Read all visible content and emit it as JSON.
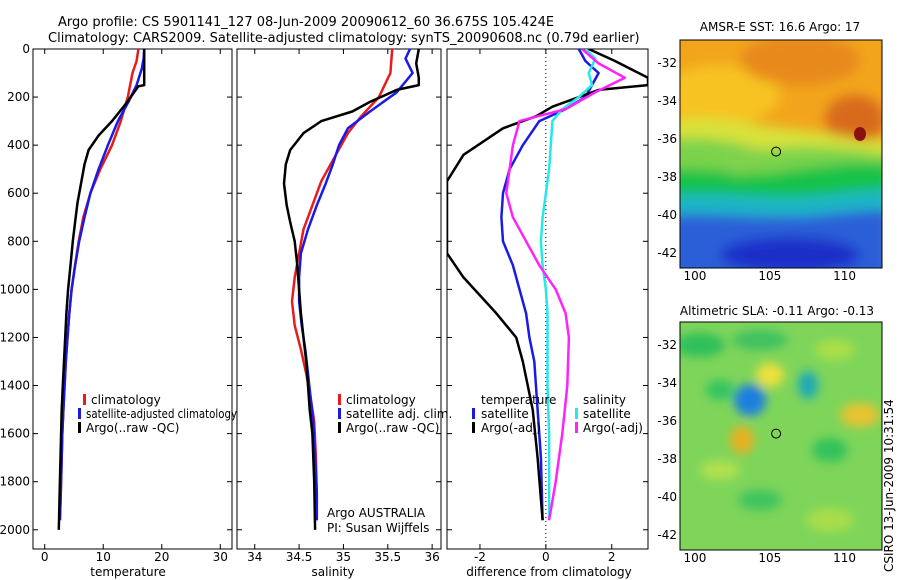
{
  "header": {
    "title_line1": "Argo profile: CS 5901141_127 08-Jun-2009 20090612_60 36.675S 105.424E",
    "title_line2": "Climatology: CARS2009. Satellite-adjusted climatology: synTS_20090608.nc (0.79d earlier)"
  },
  "colors": {
    "red": "#e81c1c",
    "blue": "#1a1ae6",
    "black": "#000000",
    "cyan": "#27e8e8",
    "magenta": "#ff22ff"
  },
  "chart_data": [
    {
      "id": "temperature",
      "type": "line",
      "xlabel": "temperature",
      "ylabel": "",
      "xlim": [
        -2,
        32
      ],
      "ylim": [
        2080,
        0
      ],
      "xticks": [
        0,
        10,
        20,
        30
      ],
      "yticks": [
        0,
        200,
        400,
        600,
        800,
        1000,
        1200,
        1400,
        1600,
        1800,
        2000
      ],
      "legend": {
        "position": "bottom-center",
        "entries": [
          "climatology",
          "satellite-adjusted climatology",
          "Argo(..raw -QC)"
        ]
      },
      "series": [
        {
          "name": "climatology",
          "color": "red",
          "points": [
            [
              16,
              0
            ],
            [
              15.7,
              50
            ],
            [
              15,
              100
            ],
            [
              14.2,
              200
            ],
            [
              13,
              300
            ],
            [
              11.5,
              400
            ],
            [
              9.5,
              500
            ],
            [
              7.8,
              600
            ],
            [
              6.6,
              700
            ],
            [
              5.8,
              800
            ],
            [
              5.2,
              900
            ],
            [
              4.6,
              1000
            ],
            [
              4.2,
              1100
            ],
            [
              3.9,
              1200
            ],
            [
              3.6,
              1300
            ],
            [
              3.4,
              1400
            ],
            [
              3.2,
              1500
            ],
            [
              3,
              1600
            ],
            [
              2.8,
              1800
            ],
            [
              2.6,
              1960
            ]
          ]
        },
        {
          "name": "satellite-adjusted climatology",
          "color": "blue",
          "points": [
            [
              17,
              0
            ],
            [
              16.9,
              40
            ],
            [
              16.6,
              80
            ],
            [
              15.7,
              150
            ],
            [
              14.3,
              220
            ],
            [
              12.5,
              300
            ],
            [
              10.8,
              400
            ],
            [
              9.2,
              500
            ],
            [
              7.8,
              600
            ],
            [
              6.8,
              700
            ],
            [
              5.9,
              800
            ],
            [
              5.2,
              900
            ],
            [
              4.6,
              1000
            ],
            [
              4.2,
              1100
            ],
            [
              3.9,
              1200
            ],
            [
              3.6,
              1300
            ],
            [
              3.4,
              1400
            ],
            [
              3.2,
              1500
            ],
            [
              3,
              1600
            ],
            [
              2.8,
              1800
            ],
            [
              2.6,
              1960
            ]
          ]
        },
        {
          "name": "Argo(..raw -QC)",
          "color": "black",
          "points": [
            [
              17,
              0
            ],
            [
              17,
              60
            ],
            [
              17,
              120
            ],
            [
              17,
              150
            ],
            [
              16,
              155
            ],
            [
              13.8,
              230
            ],
            [
              11.5,
              300
            ],
            [
              9.2,
              360
            ],
            [
              7.5,
              420
            ],
            [
              6.8,
              480
            ],
            [
              6.2,
              560
            ],
            [
              5.6,
              640
            ],
            [
              5.2,
              720
            ],
            [
              4.8,
              800
            ],
            [
              4.4,
              900
            ],
            [
              4,
              1000
            ],
            [
              3.7,
              1100
            ],
            [
              3.5,
              1200
            ],
            [
              3.3,
              1300
            ],
            [
              3.1,
              1400
            ],
            [
              2.9,
              1500
            ],
            [
              2.8,
              1600
            ],
            [
              2.6,
              1800
            ],
            [
              2.4,
              2000
            ]
          ]
        }
      ]
    },
    {
      "id": "salinity",
      "type": "line",
      "xlabel": "salinity",
      "ylabel": "",
      "xlim": [
        33.8,
        36.1
      ],
      "ylim": [
        2080,
        0
      ],
      "xticks": [
        34,
        34.5,
        35,
        35.5,
        36
      ],
      "legend": {
        "position": "bottom-center",
        "entries": [
          "climatology",
          "satellite adj. clim.",
          "Argo(..raw -QC)"
        ]
      },
      "annotation": [
        "Argo AUSTRALIA",
        "PI: Susan Wijffels"
      ],
      "series": [
        {
          "name": "climatology",
          "color": "red",
          "points": [
            [
              35.55,
              0
            ],
            [
              35.53,
              100
            ],
            [
              35.4,
              200
            ],
            [
              35.2,
              280
            ],
            [
              35.05,
              350
            ],
            [
              34.9,
              450
            ],
            [
              34.75,
              550
            ],
            [
              34.65,
              650
            ],
            [
              34.55,
              750
            ],
            [
              34.5,
              850
            ],
            [
              34.45,
              950
            ],
            [
              34.42,
              1050
            ],
            [
              34.45,
              1150
            ],
            [
              34.52,
              1250
            ],
            [
              34.58,
              1350
            ],
            [
              34.63,
              1450
            ],
            [
              34.67,
              1550
            ],
            [
              34.69,
              1700
            ],
            [
              34.7,
              1850
            ],
            [
              34.7,
              1960
            ]
          ]
        },
        {
          "name": "satellite adj. clim.",
          "color": "blue",
          "points": [
            [
              35.75,
              0
            ],
            [
              35.7,
              40
            ],
            [
              35.78,
              100
            ],
            [
              35.6,
              180
            ],
            [
              35.3,
              260
            ],
            [
              35.05,
              330
            ],
            [
              34.95,
              400
            ],
            [
              34.88,
              480
            ],
            [
              34.8,
              560
            ],
            [
              34.7,
              650
            ],
            [
              34.6,
              750
            ],
            [
              34.52,
              850
            ],
            [
              34.5,
              950
            ],
            [
              34.5,
              1050
            ],
            [
              34.53,
              1150
            ],
            [
              34.57,
              1250
            ],
            [
              34.6,
              1350
            ],
            [
              34.63,
              1450
            ],
            [
              34.66,
              1550
            ],
            [
              34.68,
              1700
            ],
            [
              34.7,
              1850
            ],
            [
              34.7,
              1960
            ]
          ]
        },
        {
          "name": "Argo(..raw -QC)",
          "color": "black",
          "points": [
            [
              35.85,
              0
            ],
            [
              35.82,
              60
            ],
            [
              35.85,
              120
            ],
            [
              35.85,
              150
            ],
            [
              35.6,
              170
            ],
            [
              35.3,
              220
            ],
            [
              35.1,
              260
            ],
            [
              34.75,
              300
            ],
            [
              34.55,
              350
            ],
            [
              34.4,
              420
            ],
            [
              34.35,
              480
            ],
            [
              34.33,
              560
            ],
            [
              34.36,
              650
            ],
            [
              34.4,
              720
            ],
            [
              34.45,
              800
            ],
            [
              34.48,
              900
            ],
            [
              34.5,
              1000
            ],
            [
              34.52,
              1100
            ],
            [
              34.55,
              1200
            ],
            [
              34.58,
              1300
            ],
            [
              34.6,
              1400
            ],
            [
              34.62,
              1500
            ],
            [
              34.65,
              1600
            ],
            [
              34.67,
              1800
            ],
            [
              34.68,
              2000
            ]
          ]
        }
      ]
    },
    {
      "id": "difference",
      "type": "line",
      "xlabel": "difference from climatology",
      "ylabel": "",
      "xlim": [
        -3,
        3.1
      ],
      "ylim": [
        2080,
        0
      ],
      "xticks": [
        -2,
        0,
        2
      ],
      "zero_line": true,
      "legend": {
        "position": "bottom-center",
        "groups": [
          [
            "temperature",
            "satellite",
            "Argo(-adj)"
          ],
          [
            "salinity",
            "satellite",
            "Argo(-adj)"
          ]
        ]
      },
      "series": [
        {
          "name": "temperature satellite",
          "color": "blue",
          "points": [
            [
              1,
              0
            ],
            [
              1.2,
              50
            ],
            [
              1.6,
              100
            ],
            [
              1.4,
              150
            ],
            [
              1.2,
              200
            ],
            [
              0.6,
              250
            ],
            [
              -0.2,
              300
            ],
            [
              -0.7,
              400
            ],
            [
              -1.1,
              500
            ],
            [
              -1.3,
              600
            ],
            [
              -1.35,
              700
            ],
            [
              -1.3,
              800
            ],
            [
              -1.0,
              900
            ],
            [
              -0.8,
              1000
            ],
            [
              -0.6,
              1100
            ],
            [
              -0.5,
              1200
            ],
            [
              -0.35,
              1300
            ],
            [
              -0.25,
              1500
            ],
            [
              -0.15,
              1700
            ],
            [
              -0.1,
              1960
            ]
          ]
        },
        {
          "name": "temperature Argo(-adj)",
          "color": "black",
          "points": [
            [
              1.3,
              0
            ],
            [
              2.1,
              50
            ],
            [
              3.1,
              120
            ],
            [
              3.1,
              150
            ],
            [
              1.6,
              170
            ],
            [
              0.2,
              240
            ],
            [
              -0.3,
              280
            ],
            [
              -1.3,
              330
            ],
            [
              -2.5,
              440
            ],
            [
              -3,
              550
            ],
            [
              -3,
              800
            ],
            [
              -3,
              850
            ],
            [
              -2.5,
              950
            ],
            [
              -1.5,
              1100
            ],
            [
              -0.9,
              1200
            ],
            [
              -0.7,
              1300
            ],
            [
              -0.4,
              1500
            ],
            [
              -0.25,
              1700
            ],
            [
              -0.1,
              1960
            ]
          ]
        },
        {
          "name": "salinity satellite",
          "color": "cyan",
          "points": [
            [
              1.2,
              0
            ],
            [
              1.5,
              40
            ],
            [
              1.3,
              100
            ],
            [
              1.4,
              150
            ],
            [
              1.0,
              200
            ],
            [
              0.5,
              250
            ],
            [
              0.2,
              300
            ],
            [
              0.15,
              400
            ],
            [
              0.1,
              500
            ],
            [
              0,
              600
            ],
            [
              -0.1,
              700
            ],
            [
              -0.15,
              800
            ],
            [
              -0.1,
              900
            ],
            [
              0,
              1000
            ],
            [
              0.05,
              1100
            ],
            [
              0.05,
              1200
            ],
            [
              0.05,
              1400
            ],
            [
              0.1,
              1600
            ],
            [
              0.1,
              1800
            ],
            [
              0.1,
              1960
            ]
          ]
        },
        {
          "name": "salinity Argo(-adj)",
          "color": "magenta",
          "points": [
            [
              1.1,
              0
            ],
            [
              1.6,
              60
            ],
            [
              2.4,
              120
            ],
            [
              1.5,
              180
            ],
            [
              0.6,
              250
            ],
            [
              -0.8,
              300
            ],
            [
              -1.0,
              400
            ],
            [
              -1.1,
              500
            ],
            [
              -1.2,
              600
            ],
            [
              -1.0,
              700
            ],
            [
              -0.6,
              800
            ],
            [
              -0.2,
              900
            ],
            [
              0.3,
              1000
            ],
            [
              0.6,
              1100
            ],
            [
              0.7,
              1200
            ],
            [
              0.65,
              1400
            ],
            [
              0.5,
              1600
            ],
            [
              0.3,
              1800
            ],
            [
              0.1,
              1960
            ]
          ]
        }
      ]
    },
    {
      "id": "sst_map",
      "type": "heatmap",
      "title": "AMSR-E SST: 16.6 Argo: 17",
      "xlim": [
        99,
        112.5
      ],
      "ylim": [
        -42.8,
        -30.8
      ],
      "xticks": [
        100,
        105,
        110
      ],
      "yticks": [
        -32,
        -34,
        -36,
        -38,
        -40,
        -42
      ],
      "marker": {
        "lon": 105.424,
        "lat": -36.675
      }
    },
    {
      "id": "sla_map",
      "type": "heatmap",
      "title": "Altimetric SLA: -0.11 Argo: -0.13",
      "xlim": [
        99,
        112.5
      ],
      "ylim": [
        -42.8,
        -30.8
      ],
      "xticks": [
        100,
        105,
        110
      ],
      "yticks": [
        -32,
        -34,
        -36,
        -38,
        -40,
        -42
      ],
      "marker": {
        "lon": 105.424,
        "lat": -36.675
      }
    }
  ],
  "footer": {
    "stamp": "CSIRO 13-Jun-2009 10:31:54"
  }
}
